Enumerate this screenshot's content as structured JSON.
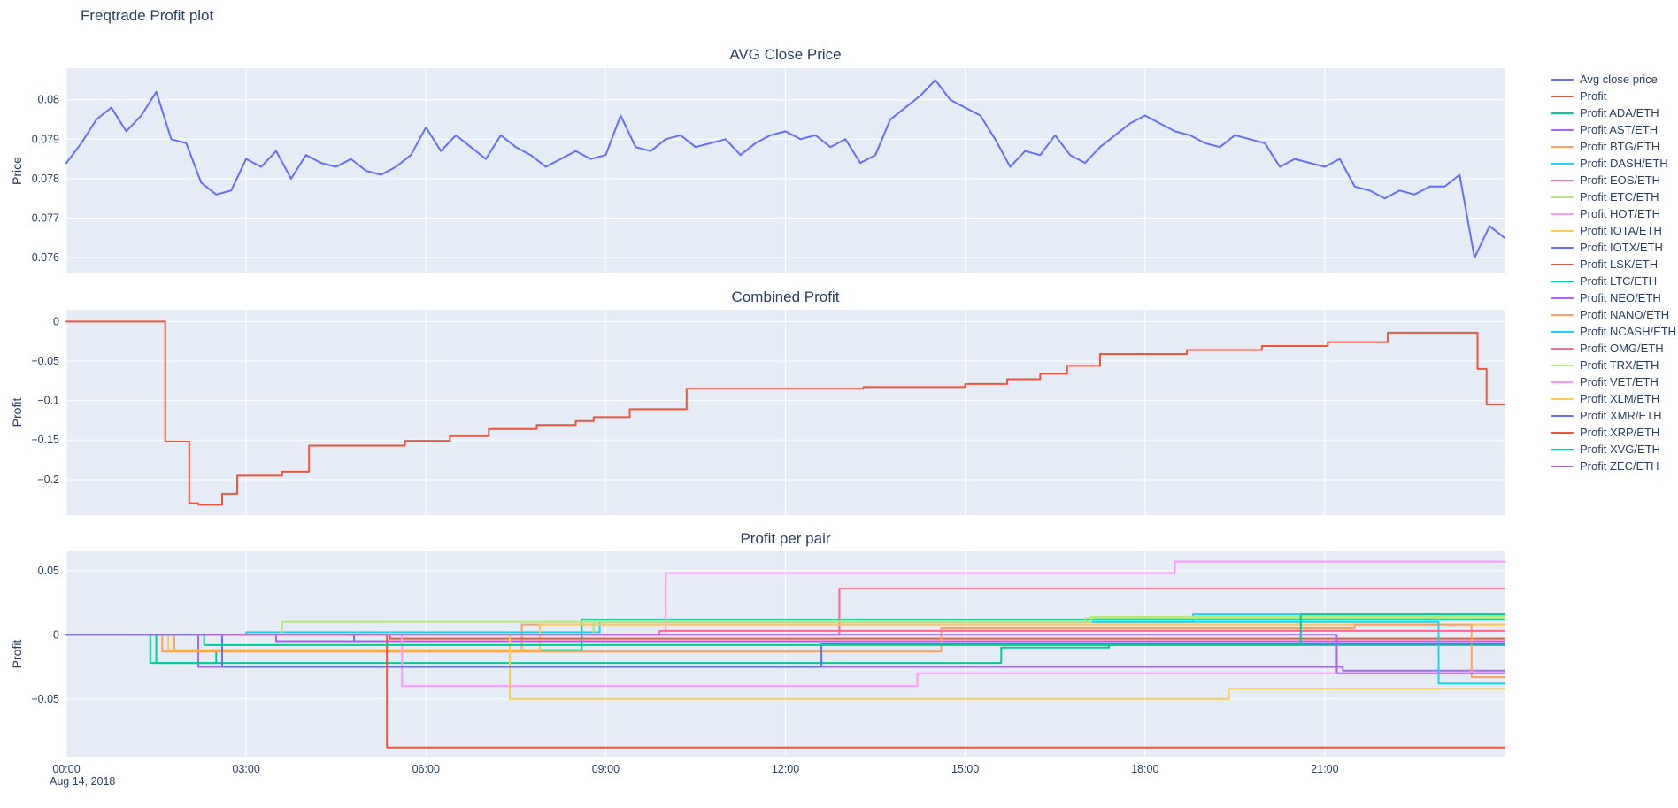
{
  "page_title": "Freqtrade Profit plot",
  "date_label": "Aug 14, 2018",
  "style": {
    "plot_bg": "#E5ECF6",
    "grid_color": "#ffffff",
    "text_color": "#2a3f5f",
    "accent_blue": "#636efa",
    "accent_red": "#EF553B"
  },
  "legend": {
    "items": [
      {
        "label": "Avg close price",
        "color": "#636efa"
      },
      {
        "label": "Profit",
        "color": "#EF553B"
      },
      {
        "label": "Profit ADA/ETH",
        "color": "#00cc96"
      },
      {
        "label": "Profit AST/ETH",
        "color": "#ab63fa"
      },
      {
        "label": "Profit BTG/ETH",
        "color": "#FFA15A"
      },
      {
        "label": "Profit DASH/ETH",
        "color": "#19d3f3"
      },
      {
        "label": "Profit EOS/ETH",
        "color": "#FF6692"
      },
      {
        "label": "Profit ETC/ETH",
        "color": "#B6E880"
      },
      {
        "label": "Profit HOT/ETH",
        "color": "#FF97FF"
      },
      {
        "label": "Profit IOTA/ETH",
        "color": "#FECB52"
      },
      {
        "label": "Profit IOTX/ETH",
        "color": "#636efa"
      },
      {
        "label": "Profit LSK/ETH",
        "color": "#EF553B"
      },
      {
        "label": "Profit LTC/ETH",
        "color": "#00cc96"
      },
      {
        "label": "Profit NEO/ETH",
        "color": "#ab63fa"
      },
      {
        "label": "Profit NANO/ETH",
        "color": "#FFA15A"
      },
      {
        "label": "Profit NCASH/ETH",
        "color": "#19d3f3"
      },
      {
        "label": "Profit OMG/ETH",
        "color": "#FF6692"
      },
      {
        "label": "Profit TRX/ETH",
        "color": "#B6E880"
      },
      {
        "label": "Profit VET/ETH",
        "color": "#FF97FF"
      },
      {
        "label": "Profit XLM/ETH",
        "color": "#FECB52"
      },
      {
        "label": "Profit XMR/ETH",
        "color": "#636efa"
      },
      {
        "label": "Profit XRP/ETH",
        "color": "#EF553B"
      },
      {
        "label": "Profit XVG/ETH",
        "color": "#00cc96"
      },
      {
        "label": "Profit ZEC/ETH",
        "color": "#ab63fa"
      }
    ]
  },
  "chart_data": [
    {
      "type": "line",
      "title": "AVG Close Price",
      "ylabel": "Price",
      "xlabel": "",
      "xlim": [
        0,
        24
      ],
      "ylim": [
        0.0756,
        0.0808
      ],
      "xticks": [
        0,
        3,
        6,
        9,
        12,
        15,
        18,
        21
      ],
      "xtick_labels": [
        "00:00",
        "03:00",
        "06:00",
        "09:00",
        "12:00",
        "15:00",
        "18:00",
        "21:00"
      ],
      "show_xlabels": false,
      "yticks": [
        0.076,
        0.077,
        0.078,
        0.079,
        0.08
      ],
      "ytick_labels": [
        "0.076",
        "0.077",
        "0.078",
        "0.079",
        "0.08"
      ],
      "grid": true,
      "legend_position": "right",
      "series": [
        {
          "name": "Avg close price",
          "color": "#636efa",
          "step": false,
          "x0": 0,
          "dx": 0.25,
          "y": [
            0.0784,
            0.0789,
            0.0795,
            0.0798,
            0.0792,
            0.0796,
            0.0802,
            0.079,
            0.0789,
            0.0779,
            0.0776,
            0.0777,
            0.0785,
            0.0783,
            0.0787,
            0.078,
            0.0786,
            0.0784,
            0.0783,
            0.0785,
            0.0782,
            0.0781,
            0.0783,
            0.0786,
            0.0793,
            0.0787,
            0.0791,
            0.0788,
            0.0785,
            0.0791,
            0.0788,
            0.0786,
            0.0783,
            0.0785,
            0.0787,
            0.0785,
            0.0786,
            0.0796,
            0.0788,
            0.0787,
            0.079,
            0.0791,
            0.0788,
            0.0789,
            0.079,
            0.0786,
            0.0789,
            0.0791,
            0.0792,
            0.079,
            0.0791,
            0.0788,
            0.079,
            0.0784,
            0.0786,
            0.0795,
            0.0798,
            0.0801,
            0.0805,
            0.08,
            0.0798,
            0.0796,
            0.079,
            0.0783,
            0.0787,
            0.0786,
            0.0791,
            0.0786,
            0.0784,
            0.0788,
            0.0791,
            0.0794,
            0.0796,
            0.0794,
            0.0792,
            0.0791,
            0.0789,
            0.0788,
            0.0791,
            0.079,
            0.0789,
            0.0783,
            0.0785,
            0.0784,
            0.0783,
            0.0785,
            0.0778,
            0.0777,
            0.0775,
            0.0777,
            0.0776,
            0.0778,
            0.0778,
            0.0781,
            0.076,
            0.0768,
            0.0765
          ]
        }
      ]
    },
    {
      "type": "line",
      "title": "Combined Profit",
      "ylabel": "Profit",
      "xlabel": "",
      "xlim": [
        0,
        24
      ],
      "ylim": [
        -0.245,
        0.015
      ],
      "xticks": [
        0,
        3,
        6,
        9,
        12,
        15,
        18,
        21
      ],
      "xtick_labels": [
        "00:00",
        "03:00",
        "06:00",
        "09:00",
        "12:00",
        "15:00",
        "18:00",
        "21:00"
      ],
      "show_xlabels": false,
      "yticks": [
        -0.2,
        -0.15,
        -0.1,
        -0.05,
        0
      ],
      "ytick_labels": [
        "−0.2",
        "−0.15",
        "−0.1",
        "−0.05",
        "0"
      ],
      "grid": true,
      "series": [
        {
          "name": "Profit",
          "color": "#EF553B",
          "step": true,
          "points": [
            [
              0,
              0
            ],
            [
              1.65,
              -0.152
            ],
            [
              2.05,
              -0.23
            ],
            [
              2.2,
              -0.232
            ],
            [
              2.6,
              -0.218
            ],
            [
              2.85,
              -0.195
            ],
            [
              3.6,
              -0.19
            ],
            [
              4.05,
              -0.157
            ],
            [
              5.65,
              -0.151
            ],
            [
              6.4,
              -0.145
            ],
            [
              7.05,
              -0.136
            ],
            [
              7.85,
              -0.131
            ],
            [
              8.5,
              -0.126
            ],
            [
              8.8,
              -0.121
            ],
            [
              9.4,
              -0.111
            ],
            [
              10.35,
              -0.085
            ],
            [
              13.3,
              -0.083
            ],
            [
              15.0,
              -0.079
            ],
            [
              15.7,
              -0.073
            ],
            [
              16.25,
              -0.066
            ],
            [
              16.7,
              -0.056
            ],
            [
              17.25,
              -0.041
            ],
            [
              18.7,
              -0.036
            ],
            [
              19.95,
              -0.031
            ],
            [
              21.05,
              -0.026
            ],
            [
              22.05,
              -0.014
            ],
            [
              23.55,
              -0.06
            ],
            [
              23.7,
              -0.105
            ],
            [
              24,
              -0.105
            ]
          ]
        }
      ]
    },
    {
      "type": "line",
      "title": "Profit per pair",
      "ylabel": "Profit",
      "xlabel": "",
      "xlim": [
        0,
        24
      ],
      "ylim": [
        -0.095,
        0.065
      ],
      "xticks": [
        0,
        3,
        6,
        9,
        12,
        15,
        18,
        21
      ],
      "xtick_labels": [
        "00:00",
        "03:00",
        "06:00",
        "09:00",
        "12:00",
        "15:00",
        "18:00",
        "21:00"
      ],
      "show_xlabels": true,
      "yticks": [
        -0.05,
        0,
        0.05
      ],
      "ytick_labels": [
        "−0.05",
        "0",
        "0.05"
      ],
      "grid": true,
      "series": [
        {
          "name": "Profit ADA/ETH",
          "color": "#00cc96",
          "step": true,
          "points": [
            [
              0,
              0
            ],
            [
              1.4,
              -0.022
            ],
            [
              2.5,
              -0.012
            ],
            [
              8.6,
              0.012
            ],
            [
              24,
              0.012
            ]
          ]
        },
        {
          "name": "Profit AST/ETH",
          "color": "#ab63fa",
          "step": true,
          "points": [
            [
              0,
              0
            ],
            [
              2.2,
              -0.025
            ],
            [
              21.3,
              -0.028
            ],
            [
              24,
              -0.028
            ]
          ]
        },
        {
          "name": "Profit BTG/ETH",
          "color": "#FFA15A",
          "step": true,
          "points": [
            [
              0,
              0
            ],
            [
              1.8,
              -0.012
            ],
            [
              7.6,
              0.008
            ],
            [
              24,
              0.008
            ]
          ]
        },
        {
          "name": "Profit DASH/ETH",
          "color": "#19d3f3",
          "step": true,
          "points": [
            [
              0,
              0
            ],
            [
              3.0,
              0.002
            ],
            [
              8.9,
              0.01
            ],
            [
              18.8,
              0.016
            ],
            [
              24,
              0.016
            ]
          ]
        },
        {
          "name": "Profit EOS/ETH",
          "color": "#FF6692",
          "step": true,
          "points": [
            [
              0,
              0
            ],
            [
              12.9,
              0.036
            ],
            [
              24,
              0.036
            ]
          ]
        },
        {
          "name": "Profit ETC/ETH",
          "color": "#B6E880",
          "step": true,
          "points": [
            [
              0,
              0
            ],
            [
              3.6,
              0.01
            ],
            [
              17.0,
              0.013
            ],
            [
              24,
              0.013
            ]
          ]
        },
        {
          "name": "Profit HOT/ETH",
          "color": "#FF97FF",
          "step": true,
          "points": [
            [
              0,
              0
            ],
            [
              10.0,
              0.048
            ],
            [
              18.5,
              0.057
            ],
            [
              24,
              0.057
            ]
          ]
        },
        {
          "name": "Profit IOTA/ETH",
          "color": "#FECB52",
          "step": true,
          "points": [
            [
              0,
              0
            ],
            [
              1.7,
              -0.012
            ],
            [
              7.9,
              0.008
            ],
            [
              24,
              0.008
            ]
          ]
        },
        {
          "name": "Profit IOTX/ETH",
          "color": "#636efa",
          "step": true,
          "points": [
            [
              0,
              0
            ],
            [
              4.8,
              -0.005
            ],
            [
              24,
              -0.005
            ]
          ]
        },
        {
          "name": "Profit LSK/ETH",
          "color": "#EF553B",
          "step": true,
          "points": [
            [
              0,
              0
            ],
            [
              5.4,
              -0.003
            ],
            [
              24,
              -0.003
            ]
          ]
        },
        {
          "name": "Profit LTC/ETH",
          "color": "#00cc96",
          "step": true,
          "points": [
            [
              0,
              0
            ],
            [
              1.5,
              -0.022
            ],
            [
              15.6,
              -0.01
            ],
            [
              17.4,
              -0.008
            ],
            [
              24,
              -0.008
            ]
          ]
        },
        {
          "name": "Profit NEO/ETH",
          "color": "#ab63fa",
          "step": true,
          "points": [
            [
              0,
              0
            ],
            [
              3.5,
              -0.005
            ],
            [
              24,
              -0.005
            ]
          ]
        },
        {
          "name": "Profit NANO/ETH",
          "color": "#FFA15A",
          "step": true,
          "points": [
            [
              0,
              0
            ],
            [
              1.6,
              -0.013
            ],
            [
              14.6,
              0.005
            ],
            [
              21.5,
              0.008
            ],
            [
              23.45,
              -0.033
            ],
            [
              24,
              -0.033
            ]
          ]
        },
        {
          "name": "Profit NCASH/ETH",
          "color": "#19d3f3",
          "step": true,
          "points": [
            [
              0,
              0
            ],
            [
              8.8,
              0.01
            ],
            [
              22.9,
              -0.038
            ],
            [
              24,
              -0.038
            ]
          ]
        },
        {
          "name": "Profit OMG/ETH",
          "color": "#FF6692",
          "step": true,
          "points": [
            [
              0,
              0
            ],
            [
              9.9,
              0.003
            ],
            [
              24,
              0.003
            ]
          ]
        },
        {
          "name": "Profit TRX/ETH",
          "color": "#B6E880",
          "step": true,
          "points": [
            [
              0,
              0
            ],
            [
              8.8,
              0.01
            ],
            [
              17.1,
              0.014
            ],
            [
              24,
              0.014
            ]
          ]
        },
        {
          "name": "Profit VET/ETH",
          "color": "#FF97FF",
          "step": true,
          "points": [
            [
              0,
              0
            ],
            [
              5.6,
              -0.04
            ],
            [
              14.2,
              -0.03
            ],
            [
              24,
              -0.03
            ]
          ]
        },
        {
          "name": "Profit XLM/ETH",
          "color": "#FECB52",
          "step": true,
          "points": [
            [
              0,
              0
            ],
            [
              7.4,
              -0.05
            ],
            [
              19.4,
              -0.042
            ],
            [
              24,
              -0.042
            ]
          ]
        },
        {
          "name": "Profit XMR/ETH",
          "color": "#636efa",
          "step": true,
          "points": [
            [
              0,
              0
            ],
            [
              2.6,
              -0.025
            ],
            [
              12.6,
              -0.007
            ],
            [
              24,
              -0.007
            ]
          ]
        },
        {
          "name": "Profit XRP/ETH",
          "color": "#EF553B",
          "step": true,
          "points": [
            [
              0,
              0
            ],
            [
              5.35,
              -0.088
            ],
            [
              24,
              -0.088
            ]
          ]
        },
        {
          "name": "Profit XVG/ETH",
          "color": "#00cc96",
          "step": true,
          "points": [
            [
              0,
              0
            ],
            [
              2.3,
              -0.008
            ],
            [
              20.6,
              0.016
            ],
            [
              24,
              0.016
            ]
          ]
        },
        {
          "name": "Profit ZEC/ETH",
          "color": "#ab63fa",
          "step": true,
          "points": [
            [
              0,
              0
            ],
            [
              21.2,
              -0.03
            ],
            [
              24,
              -0.03
            ]
          ]
        }
      ]
    }
  ]
}
